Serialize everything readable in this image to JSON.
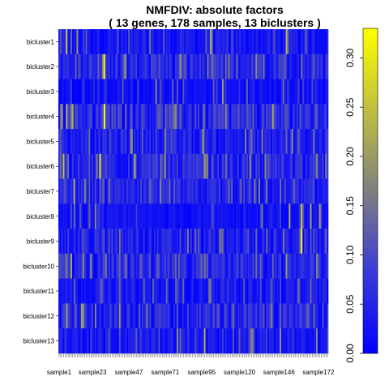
{
  "chart_data": {
    "type": "heatmap",
    "title": "NMFDIV: absolute factors",
    "subtitle": "( 13  genes,  178  samples,  13  biclusters )",
    "rows": [
      "bicluster1",
      "bicluster2",
      "bicluster3",
      "bicluster4",
      "bicluster5",
      "bicluster6",
      "bicluster7",
      "bicluster8",
      "bicluster9",
      "bicluster10",
      "bicluster11",
      "bicluster12",
      "bicluster13"
    ],
    "n_columns": 178,
    "column_tick_labels": [
      {
        "label": "sample1",
        "index": 1
      },
      {
        "label": "sample23",
        "index": 23
      },
      {
        "label": "sample47",
        "index": 47
      },
      {
        "label": "sample71",
        "index": 71
      },
      {
        "label": "sample95",
        "index": 95
      },
      {
        "label": "sample120",
        "index": 120
      },
      {
        "label": "sample146",
        "index": 146
      },
      {
        "label": "sample172",
        "index": 172
      }
    ],
    "colorbar": {
      "min": 0.0,
      "max": 0.33,
      "ticks": [
        "0.00",
        "0.05",
        "0.10",
        "0.15",
        "0.20",
        "0.25",
        "0.30"
      ],
      "tick_values": [
        0.0,
        0.05,
        0.1,
        0.15,
        0.2,
        0.25,
        0.3
      ],
      "colors": [
        "#0000ff",
        "#3a3ad8",
        "#7f7f80",
        "#bfbf40",
        "#ffff00"
      ]
    },
    "row_profiles": [
      {
        "row": "bicluster1",
        "base": 0.03,
        "spikes": [
          [
            5,
            0.28
          ],
          [
            12,
            0.2
          ],
          [
            60,
            0.16
          ],
          [
            100,
            0.22
          ],
          [
            150,
            0.24
          ]
        ]
      },
      {
        "row": "bicluster2",
        "base": 0.05,
        "spikes": [
          [
            30,
            0.3
          ],
          [
            44,
            0.18
          ],
          [
            80,
            0.2
          ],
          [
            130,
            0.18
          ],
          [
            160,
            0.16
          ]
        ]
      },
      {
        "row": "bicluster3",
        "base": 0.02,
        "spikes": [
          [
            64,
            0.18
          ],
          [
            108,
            0.2
          ],
          [
            124,
            0.14
          ]
        ]
      },
      {
        "row": "bicluster4",
        "base": 0.06,
        "spikes": [
          [
            2,
            0.2
          ],
          [
            5,
            0.24
          ],
          [
            9,
            0.22
          ],
          [
            30,
            0.33
          ],
          [
            44,
            0.16
          ],
          [
            80,
            0.14
          ]
        ]
      },
      {
        "row": "bicluster5",
        "base": 0.04,
        "spikes": [
          [
            48,
            0.2
          ],
          [
            70,
            0.18
          ],
          [
            95,
            0.22
          ],
          [
            168,
            0.16
          ]
        ]
      },
      {
        "row": "bicluster6",
        "base": 0.05,
        "spikes": [
          [
            3,
            0.26
          ],
          [
            27,
            0.32
          ],
          [
            50,
            0.24
          ],
          [
            70,
            0.2
          ],
          [
            96,
            0.2
          ],
          [
            136,
            0.18
          ]
        ]
      },
      {
        "row": "bicluster7",
        "base": 0.04,
        "spikes": [
          [
            10,
            0.24
          ],
          [
            17,
            0.18
          ],
          [
            33,
            0.16
          ],
          [
            67,
            0.18
          ],
          [
            120,
            0.14
          ]
        ]
      },
      {
        "row": "bicluster8",
        "base": 0.02,
        "spikes": [
          [
            24,
            0.18
          ],
          [
            134,
            0.16
          ],
          [
            152,
            0.24
          ],
          [
            160,
            0.26
          ],
          [
            166,
            0.24
          ],
          [
            172,
            0.22
          ]
        ]
      },
      {
        "row": "bicluster9",
        "base": 0.04,
        "spikes": [
          [
            40,
            0.16
          ],
          [
            90,
            0.14
          ],
          [
            130,
            0.14
          ],
          [
            160,
            0.32
          ],
          [
            176,
            0.14
          ]
        ]
      },
      {
        "row": "bicluster10",
        "base": 0.05,
        "spikes": [
          [
            8,
            0.24
          ],
          [
            16,
            0.18
          ],
          [
            44,
            0.16
          ],
          [
            150,
            0.2
          ],
          [
            170,
            0.18
          ]
        ]
      },
      {
        "row": "bicluster11",
        "base": 0.03,
        "spikes": [
          [
            62,
            0.14
          ],
          [
            82,
            0.14
          ],
          [
            100,
            0.14
          ],
          [
            122,
            0.12
          ],
          [
            140,
            0.12
          ]
        ]
      },
      {
        "row": "bicluster12",
        "base": 0.05,
        "spikes": [
          [
            5,
            0.2
          ],
          [
            16,
            0.18
          ],
          [
            24,
            0.18
          ],
          [
            40,
            0.2
          ],
          [
            58,
            0.16
          ]
        ]
      },
      {
        "row": "bicluster13",
        "base": 0.03,
        "spikes": [
          [
            78,
            0.2
          ],
          [
            96,
            0.24
          ],
          [
            127,
            0.18
          ],
          [
            146,
            0.2
          ],
          [
            170,
            0.18
          ]
        ]
      }
    ]
  }
}
